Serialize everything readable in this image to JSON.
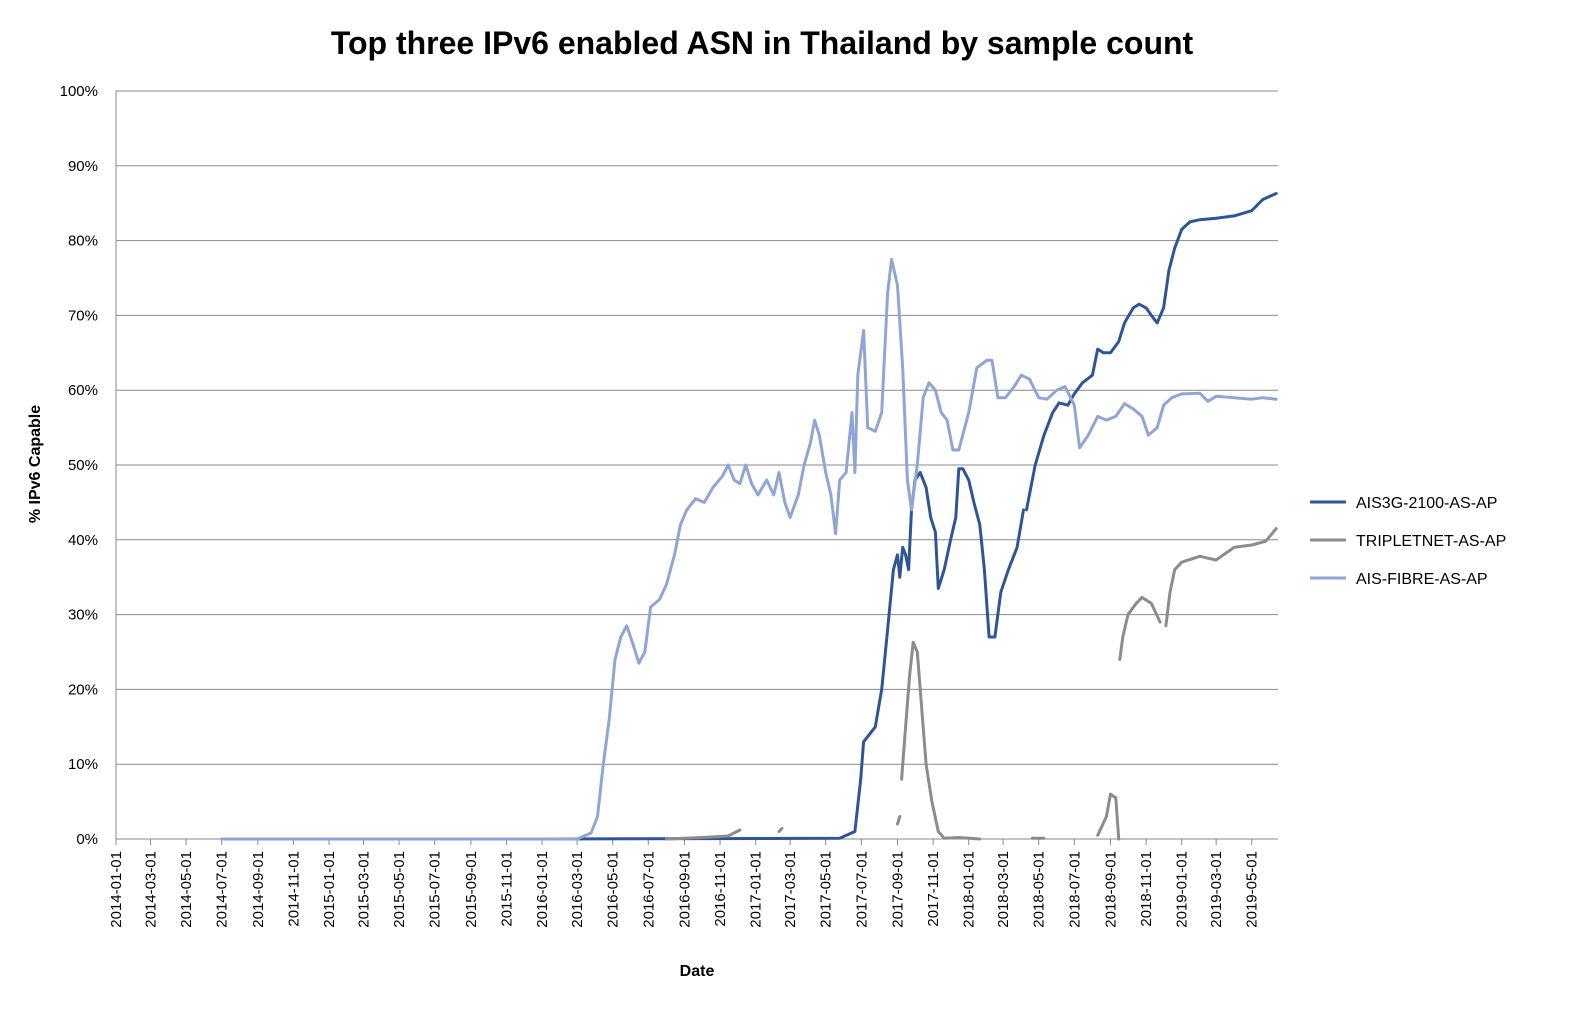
{
  "chart_data": {
    "type": "line",
    "title": "Top three IPv6 enabled ASN in Thailand by sample count",
    "xlabel": "Date",
    "ylabel": "% IPv6 Capable",
    "xlim": [
      "2014-01-01",
      "2019-06-15"
    ],
    "ylim": [
      0,
      100
    ],
    "grid": "horizontal",
    "legend_position": "right",
    "y_ticks": [
      "0%",
      "10%",
      "20%",
      "30%",
      "40%",
      "50%",
      "60%",
      "70%",
      "80%",
      "90%",
      "100%"
    ],
    "y_tick_values": [
      0,
      10,
      20,
      30,
      40,
      50,
      60,
      70,
      80,
      90,
      100
    ],
    "x_ticks": [
      "2014-01-01",
      "2014-03-01",
      "2014-05-01",
      "2014-07-01",
      "2014-09-01",
      "2014-11-01",
      "2015-01-01",
      "2015-03-01",
      "2015-05-01",
      "2015-07-01",
      "2015-09-01",
      "2015-11-01",
      "2016-01-01",
      "2016-03-01",
      "2016-05-01",
      "2016-07-01",
      "2016-09-01",
      "2016-11-01",
      "2017-01-01",
      "2017-03-01",
      "2017-05-01",
      "2017-07-01",
      "2017-09-01",
      "2017-11-01",
      "2018-01-01",
      "2018-03-01",
      "2018-05-01",
      "2018-07-01",
      "2018-09-01",
      "2018-11-01",
      "2019-01-01",
      "2019-03-01",
      "2019-05-01"
    ],
    "series": [
      {
        "name": "AIS3G-2100-AS-AP",
        "color": "#2e5597",
        "segments": [
          [
            [
              "2016-01-01",
              0
            ],
            [
              "2017-05-25",
              0.1
            ],
            [
              "2017-06-20",
              1.0
            ],
            [
              "2017-06-30",
              8
            ],
            [
              "2017-07-05",
              13
            ],
            [
              "2017-07-15",
              14
            ],
            [
              "2017-07-25",
              15
            ],
            [
              "2017-08-05",
              20
            ],
            [
              "2017-08-15",
              28
            ],
            [
              "2017-08-25",
              36
            ],
            [
              "2017-09-01",
              38
            ],
            [
              "2017-09-05",
              35
            ],
            [
              "2017-09-10",
              39
            ],
            [
              "2017-09-15",
              38
            ],
            [
              "2017-09-20",
              36
            ],
            [
              "2017-09-25",
              44
            ],
            [
              "2017-10-01",
              48
            ],
            [
              "2017-10-10",
              49
            ],
            [
              "2017-10-20",
              47
            ],
            [
              "2017-10-28",
              43
            ],
            [
              "2017-11-05",
              41
            ],
            [
              "2017-11-10",
              33.5
            ],
            [
              "2017-11-20",
              36
            ],
            [
              "2017-12-01",
              40
            ],
            [
              "2017-12-10",
              43
            ],
            [
              "2017-12-15",
              49.5
            ],
            [
              "2017-12-22",
              49.5
            ],
            [
              "2018-01-01",
              48
            ],
            [
              "2018-01-10",
              45
            ],
            [
              "2018-01-20",
              42
            ],
            [
              "2018-01-28",
              36
            ],
            [
              "2018-02-05",
              27
            ],
            [
              "2018-02-15",
              27
            ],
            [
              "2018-02-25",
              33
            ],
            [
              "2018-03-10",
              36
            ],
            [
              "2018-03-25",
              39
            ],
            [
              "2018-04-05",
              44
            ]
          ],
          [
            [
              "2018-04-10",
              44
            ],
            [
              "2018-04-25",
              50
            ],
            [
              "2018-05-10",
              54
            ],
            [
              "2018-05-25",
              57
            ],
            [
              "2018-06-05",
              58.3
            ],
            [
              "2018-06-20",
              58
            ],
            [
              "2018-07-01",
              59.5
            ],
            [
              "2018-07-15",
              61
            ],
            [
              "2018-08-01",
              62
            ],
            [
              "2018-08-10",
              65.5
            ],
            [
              "2018-08-20",
              65
            ],
            [
              "2018-09-01",
              65
            ],
            [
              "2018-09-15",
              66.5
            ],
            [
              "2018-09-25",
              69
            ],
            [
              "2018-10-10",
              71
            ],
            [
              "2018-10-20",
              71.5
            ],
            [
              "2018-11-01",
              71
            ],
            [
              "2018-11-10",
              70
            ],
            [
              "2018-11-20",
              69
            ],
            [
              "2018-12-01",
              71
            ],
            [
              "2018-12-10",
              76
            ],
            [
              "2018-12-20",
              79
            ],
            [
              "2019-01-01",
              81.5
            ],
            [
              "2019-01-15",
              82.5
            ],
            [
              "2019-02-01",
              82.8
            ],
            [
              "2019-03-01",
              83
            ],
            [
              "2019-04-01",
              83.3
            ],
            [
              "2019-05-01",
              84
            ],
            [
              "2019-05-20",
              85.5
            ],
            [
              "2019-06-12",
              86.3
            ]
          ]
        ]
      },
      {
        "name": "TRIPLETNET-AS-AP",
        "color": "#8c8c8c",
        "segments": [
          [
            [
              "2016-08-01",
              0
            ],
            [
              "2016-10-01",
              0.2
            ],
            [
              "2016-11-15",
              0.4
            ],
            [
              "2016-12-05",
              1.2
            ]
          ],
          [
            [
              "2017-02-10",
              1.0
            ],
            [
              "2017-02-15",
              1.4
            ]
          ],
          [
            [
              "2017-09-01",
              2.0
            ],
            [
              "2017-09-05",
              3.0
            ]
          ],
          [
            [
              "2017-09-08",
              8
            ],
            [
              "2017-09-15",
              15
            ],
            [
              "2017-09-22",
              22
            ],
            [
              "2017-09-28",
              26.3
            ],
            [
              "2017-10-05",
              25
            ],
            [
              "2017-10-12",
              18
            ],
            [
              "2017-10-20",
              10
            ],
            [
              "2017-10-30",
              5
            ],
            [
              "2017-11-10",
              1
            ],
            [
              "2017-11-20",
              0.1
            ],
            [
              "2017-12-15",
              0.2
            ],
            [
              "2018-01-20",
              0
            ]
          ],
          [
            [
              "2018-04-20",
              0.1
            ],
            [
              "2018-05-10",
              0.1
            ]
          ],
          [
            [
              "2018-08-10",
              0.5
            ],
            [
              "2018-08-25",
              3
            ],
            [
              "2018-09-01",
              6
            ],
            [
              "2018-09-10",
              5.5
            ],
            [
              "2018-09-15",
              0
            ]
          ],
          [
            [
              "2018-09-17",
              24
            ],
            [
              "2018-09-22",
              27
            ],
            [
              "2018-10-01",
              30
            ],
            [
              "2018-10-15",
              31.5
            ],
            [
              "2018-10-25",
              32.3
            ],
            [
              "2018-11-10",
              31.5
            ],
            [
              "2018-11-25",
              29
            ]
          ],
          [
            [
              "2018-12-05",
              28.5
            ],
            [
              "2018-12-12",
              33
            ],
            [
              "2018-12-20",
              36
            ],
            [
              "2019-01-01",
              37
            ],
            [
              "2019-02-01",
              37.8
            ],
            [
              "2019-03-01",
              37.3
            ],
            [
              "2019-04-01",
              39
            ],
            [
              "2019-05-01",
              39.3
            ],
            [
              "2019-05-25",
              39.8
            ],
            [
              "2019-06-12",
              41.5
            ]
          ]
        ]
      },
      {
        "name": "AIS-FIBRE-AS-AP",
        "color": "#8fa6d4",
        "segments": [
          [
            [
              "2014-07-01",
              0
            ],
            [
              "2016-03-01",
              0
            ],
            [
              "2016-03-25",
              0.8
            ],
            [
              "2016-04-05",
              3
            ],
            [
              "2016-04-15",
              10
            ],
            [
              "2016-04-25",
              16
            ],
            [
              "2016-05-05",
              24
            ],
            [
              "2016-05-15",
              27
            ],
            [
              "2016-05-25",
              28.5
            ],
            [
              "2016-06-05",
              26
            ],
            [
              "2016-06-15",
              23.5
            ],
            [
              "2016-06-25",
              25
            ],
            [
              "2016-07-05",
              31
            ],
            [
              "2016-07-20",
              32
            ],
            [
              "2016-08-01",
              34
            ],
            [
              "2016-08-15",
              38
            ],
            [
              "2016-08-25",
              42
            ],
            [
              "2016-09-05",
              44
            ],
            [
              "2016-09-20",
              45.5
            ],
            [
              "2016-10-05",
              45
            ],
            [
              "2016-10-20",
              47
            ],
            [
              "2016-11-05",
              48.5
            ],
            [
              "2016-11-15",
              50
            ],
            [
              "2016-11-25",
              48
            ],
            [
              "2016-12-05",
              47.5
            ],
            [
              "2016-12-15",
              50
            ],
            [
              "2016-12-25",
              47.5
            ],
            [
              "2017-01-05",
              46
            ],
            [
              "2017-01-20",
              48
            ],
            [
              "2017-02-01",
              46
            ],
            [
              "2017-02-10",
              49
            ],
            [
              "2017-02-20",
              45
            ],
            [
              "2017-03-01",
              43
            ],
            [
              "2017-03-15",
              46
            ],
            [
              "2017-03-25",
              50
            ],
            [
              "2017-04-05",
              53
            ],
            [
              "2017-04-12",
              56
            ],
            [
              "2017-04-20",
              54
            ],
            [
              "2017-05-01",
              49
            ],
            [
              "2017-05-10",
              46
            ],
            [
              "2017-05-18",
              40.8
            ],
            [
              "2017-05-25",
              48
            ],
            [
              "2017-06-05",
              49
            ],
            [
              "2017-06-15",
              57
            ],
            [
              "2017-06-20",
              49
            ],
            [
              "2017-06-25",
              62
            ],
            [
              "2017-07-05",
              68
            ],
            [
              "2017-07-12",
              55
            ],
            [
              "2017-07-25",
              54.5
            ],
            [
              "2017-08-05",
              57
            ],
            [
              "2017-08-15",
              73
            ],
            [
              "2017-08-22",
              77.5
            ],
            [
              "2017-09-01",
              74
            ],
            [
              "2017-09-10",
              63
            ],
            [
              "2017-09-18",
              48
            ],
            [
              "2017-09-25",
              44
            ],
            [
              "2017-10-05",
              50
            ],
            [
              "2017-10-15",
              59
            ],
            [
              "2017-10-25",
              61
            ],
            [
              "2017-11-05",
              60
            ],
            [
              "2017-11-15",
              57
            ],
            [
              "2017-11-25",
              56
            ],
            [
              "2017-12-05",
              52
            ],
            [
              "2017-12-15",
              52
            ],
            [
              "2018-01-01",
              57
            ],
            [
              "2018-01-15",
              63
            ],
            [
              "2018-02-01",
              64
            ],
            [
              "2018-02-10",
              64
            ],
            [
              "2018-02-20",
              59
            ],
            [
              "2018-03-05",
              59
            ],
            [
              "2018-03-20",
              60.5
            ],
            [
              "2018-04-01",
              62
            ],
            [
              "2018-04-15",
              61.5
            ],
            [
              "2018-05-01",
              59
            ],
            [
              "2018-05-15",
              58.8
            ],
            [
              "2018-06-01",
              60
            ],
            [
              "2018-06-15",
              60.5
            ],
            [
              "2018-07-01",
              58
            ],
            [
              "2018-07-10",
              52.3
            ],
            [
              "2018-07-25",
              54
            ],
            [
              "2018-08-10",
              56.5
            ],
            [
              "2018-08-25",
              56
            ],
            [
              "2018-09-10",
              56.5
            ],
            [
              "2018-09-25",
              58.2
            ],
            [
              "2018-10-10",
              57.5
            ],
            [
              "2018-10-25",
              56.5
            ],
            [
              "2018-11-05",
              54
            ],
            [
              "2018-11-20",
              55
            ],
            [
              "2018-12-01",
              58
            ],
            [
              "2018-12-15",
              59
            ],
            [
              "2019-01-01",
              59.5
            ],
            [
              "2019-02-01",
              59.6
            ],
            [
              "2019-02-15",
              58.5
            ],
            [
              "2019-03-01",
              59.2
            ],
            [
              "2019-04-01",
              59
            ],
            [
              "2019-05-01",
              58.8
            ],
            [
              "2019-05-20",
              59
            ],
            [
              "2019-06-12",
              58.8
            ]
          ]
        ]
      }
    ]
  }
}
